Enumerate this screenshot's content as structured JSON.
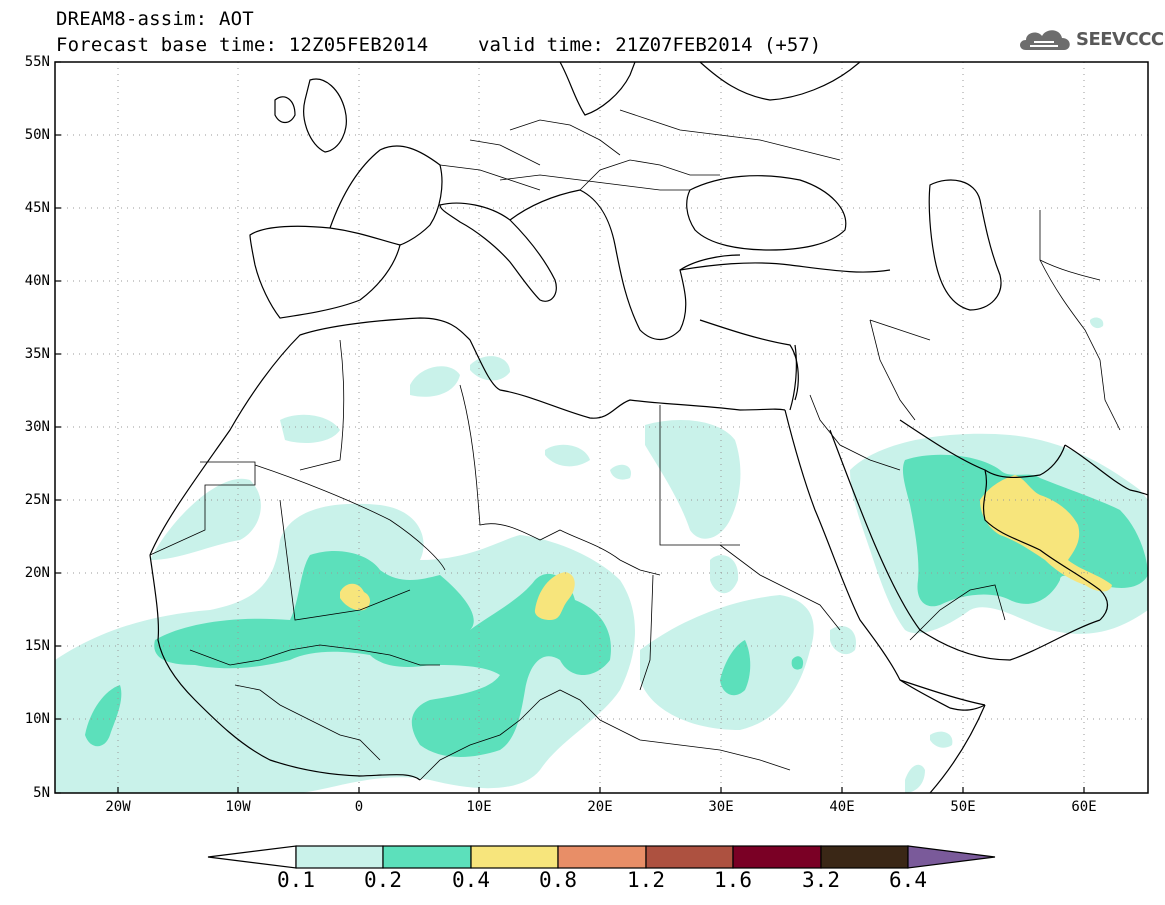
{
  "header": {
    "line1": "DREAM8-assim: AOT",
    "line2": "Forecast base time: 12Z05FEB2014",
    "valid": "valid time: 21Z07FEB2014 (+57)"
  },
  "logo": {
    "text": "SEEVCCC",
    "icon": "cloud-logo-icon"
  },
  "map": {
    "lat_labels": [
      "55N",
      "50N",
      "45N",
      "40N",
      "35N",
      "30N",
      "25N",
      "20N",
      "15N",
      "10N",
      "5N"
    ],
    "lon_labels": [
      "20W",
      "10W",
      "0",
      "10E",
      "20E",
      "30E",
      "40E",
      "50E",
      "60E"
    ],
    "lat_range": [
      5,
      55
    ],
    "lon_range": [
      -25,
      65
    ],
    "gridlines": "dotted",
    "colors": {
      "coast": "#000000",
      "grid": "#9a9a9a"
    }
  },
  "colorbar": {
    "labels": [
      "0.1",
      "0.2",
      "0.4",
      "0.8",
      "1.2",
      "1.6",
      "3.2",
      "6.4"
    ],
    "colors": [
      "#ffffff",
      "#c9f2ea",
      "#5ce0bb",
      "#f7e57c",
      "#e88e67",
      "#ad5140",
      "#7a0025",
      "#3a2716",
      "#7a5a9a"
    ]
  },
  "legend_ranges": {
    "low": "#c9f2ea",
    "mid": "#5ce0bb",
    "high": "#f7e57c"
  }
}
